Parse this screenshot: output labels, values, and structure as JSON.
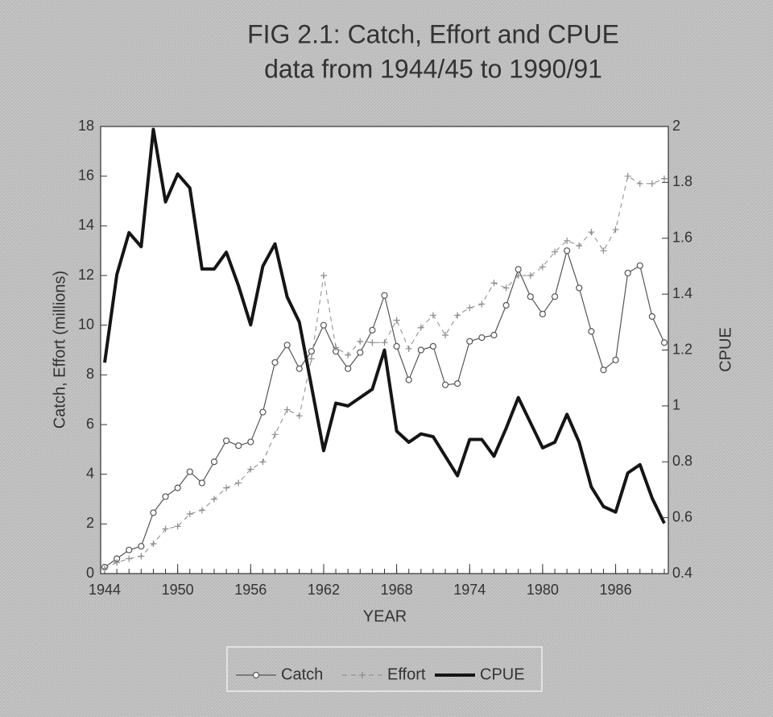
{
  "chart_data": {
    "type": "line",
    "title": [
      "FIG 2.1: Catch, Effort and CPUE",
      "data from 1944/45 to 1990/91"
    ],
    "xlabel": "YEAR",
    "ylabel": "Catch, Effort (millions)",
    "y2label": "CPUE",
    "x": [
      1944,
      1945,
      1946,
      1947,
      1948,
      1949,
      1950,
      1951,
      1952,
      1953,
      1954,
      1955,
      1956,
      1957,
      1958,
      1959,
      1960,
      1961,
      1962,
      1963,
      1964,
      1965,
      1966,
      1967,
      1968,
      1969,
      1970,
      1971,
      1972,
      1973,
      1974,
      1975,
      1976,
      1977,
      1978,
      1979,
      1980,
      1981,
      1982,
      1983,
      1984,
      1985,
      1986,
      1987,
      1988,
      1989,
      1990
    ],
    "xlim": [
      1944,
      1990
    ],
    "xticks": [
      1944,
      1950,
      1956,
      1962,
      1968,
      1974,
      1980,
      1986
    ],
    "ylim": [
      0,
      18
    ],
    "yticks": [
      0,
      2,
      4,
      6,
      8,
      10,
      12,
      14,
      16,
      18
    ],
    "y2lim": [
      0.4,
      2
    ],
    "y2ticks": [
      0.4,
      0.6,
      0.8,
      1,
      1.2,
      1.4,
      1.6,
      1.8,
      2
    ],
    "series": [
      {
        "name": "Catch",
        "color": "#555555",
        "marker": "circle",
        "values": [
          0.26,
          0.6,
          0.95,
          1.1,
          2.45,
          3.1,
          3.45,
          4.1,
          3.65,
          4.5,
          5.35,
          5.15,
          5.3,
          6.5,
          8.5,
          9.2,
          8.25,
          8.95,
          10.0,
          8.95,
          8.25,
          8.9,
          9.8,
          11.2,
          9.15,
          7.8,
          9.0,
          9.15,
          7.6,
          7.65,
          9.35,
          9.5,
          9.6,
          10.8,
          12.25,
          11.15,
          10.45,
          11.15,
          13.0,
          11.5,
          9.75,
          8.2,
          8.6,
          12.1,
          12.4,
          10.35,
          9.3
        ]
      },
      {
        "name": "Effort",
        "color": "#8a8a8a",
        "marker": "plus",
        "values": [
          0.2,
          0.45,
          0.6,
          0.7,
          1.2,
          1.8,
          1.9,
          2.4,
          2.55,
          3.0,
          3.45,
          3.65,
          4.2,
          4.5,
          5.6,
          6.6,
          6.35,
          8.65,
          12.0,
          9.1,
          8.8,
          9.35,
          9.3,
          9.3,
          10.2,
          9.05,
          9.9,
          10.4,
          9.6,
          10.4,
          10.7,
          10.85,
          11.7,
          11.5,
          12.0,
          12.0,
          12.35,
          12.95,
          13.4,
          13.2,
          13.75,
          13.0,
          13.85,
          16.0,
          15.7,
          15.7,
          15.9
        ]
      },
      {
        "name": "CPUE",
        "color": "#151515",
        "marker": "none",
        "axis": "y2",
        "values": [
          1.155,
          1.47,
          1.62,
          1.57,
          1.99,
          1.73,
          1.83,
          1.78,
          1.49,
          1.49,
          1.55,
          1.43,
          1.29,
          1.5,
          1.58,
          1.39,
          1.3,
          1.07,
          0.84,
          1.01,
          1.0,
          1.03,
          1.06,
          1.2,
          0.91,
          0.87,
          0.9,
          0.89,
          0.82,
          0.75,
          0.88,
          0.88,
          0.82,
          0.92,
          1.03,
          0.94,
          0.85,
          0.87,
          0.97,
          0.87,
          0.71,
          0.64,
          0.62,
          0.76,
          0.79,
          0.67,
          0.58
        ]
      }
    ]
  }
}
